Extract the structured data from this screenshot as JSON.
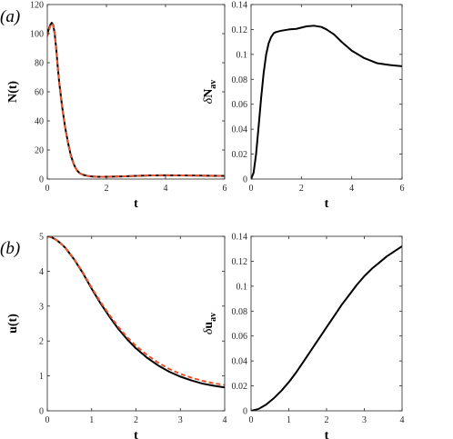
{
  "chart_data": [
    {
      "id": "a-left",
      "type": "line",
      "panel_label": "(a)",
      "xlabel": "t",
      "ylabel": "N(t)",
      "ylabel_parts": {
        "base": "N(t)",
        "delta": "",
        "sub": ""
      },
      "xlim": [
        0,
        6
      ],
      "ylim": [
        0,
        120
      ],
      "xticks": [
        0,
        2,
        4,
        6
      ],
      "yticks": [
        0,
        20,
        40,
        60,
        80,
        100,
        120
      ],
      "grid": false,
      "series": [
        {
          "color": "#000000",
          "dashed": false,
          "width": 2,
          "x": [
            0,
            0.05,
            0.1,
            0.15,
            0.2,
            0.25,
            0.3,
            0.35,
            0.4,
            0.5,
            0.6,
            0.7,
            0.8,
            0.9,
            1.0,
            1.1,
            1.2,
            1.3,
            1.4,
            1.5,
            1.7,
            2.0,
            2.5,
            3.0,
            3.5,
            4.0,
            4.5,
            5.0,
            5.5,
            6.0
          ],
          "values": [
            100,
            103,
            106,
            107.5,
            106,
            100,
            90,
            78,
            67,
            50,
            36,
            25,
            16,
            10,
            6,
            4,
            3,
            2.5,
            2,
            1.8,
            1.6,
            1.6,
            1.8,
            2.2,
            2.5,
            2.6,
            2.5,
            2.4,
            2.3,
            2.2
          ]
        },
        {
          "color": "#e8532b",
          "dashed": true,
          "width": 2,
          "x": [
            0,
            0.05,
            0.1,
            0.15,
            0.2,
            0.25,
            0.3,
            0.35,
            0.4,
            0.5,
            0.6,
            0.7,
            0.8,
            0.9,
            1.0,
            1.1,
            1.2,
            1.3,
            1.4,
            1.5,
            1.7,
            2.0,
            2.5,
            3.0,
            3.5,
            4.0,
            4.5,
            5.0,
            5.5,
            6.0
          ],
          "values": [
            98,
            102,
            105,
            107,
            105.5,
            99.5,
            89.5,
            77.5,
            66.5,
            49.5,
            35.5,
            24.5,
            15.5,
            9.8,
            5.8,
            3.9,
            2.9,
            2.4,
            2,
            1.8,
            1.6,
            1.6,
            1.8,
            2.2,
            2.5,
            2.6,
            2.5,
            2.4,
            2.3,
            2.2
          ]
        }
      ]
    },
    {
      "id": "a-right",
      "type": "line",
      "xlabel": "t",
      "ylabel": "δNav",
      "ylabel_parts": {
        "base": "N",
        "delta": "δ",
        "sub": "av"
      },
      "xlim": [
        0,
        6
      ],
      "ylim": [
        0,
        0.14
      ],
      "xticks": [
        0,
        2,
        4,
        6
      ],
      "yticks": [
        0,
        0.02,
        0.04,
        0.06,
        0.08,
        0.1,
        0.12,
        0.14
      ],
      "grid": false,
      "series": [
        {
          "color": "#000000",
          "dashed": false,
          "width": 2,
          "x": [
            0,
            0.1,
            0.2,
            0.3,
            0.4,
            0.5,
            0.6,
            0.7,
            0.8,
            0.9,
            1.0,
            1.2,
            1.5,
            1.8,
            2.0,
            2.2,
            2.5,
            2.8,
            3.0,
            3.3,
            3.6,
            4.0,
            4.5,
            5.0,
            5.5,
            6.0
          ],
          "values": [
            0,
            0.005,
            0.02,
            0.042,
            0.065,
            0.085,
            0.1,
            0.109,
            0.114,
            0.117,
            0.118,
            0.119,
            0.12,
            0.1205,
            0.1215,
            0.1225,
            0.123,
            0.122,
            0.12,
            0.116,
            0.11,
            0.103,
            0.097,
            0.093,
            0.0915,
            0.0905
          ]
        }
      ]
    },
    {
      "id": "b-left",
      "type": "line",
      "panel_label": "(b)",
      "xlabel": "t",
      "ylabel": "u(t)",
      "ylabel_parts": {
        "base": "u(t)",
        "delta": "",
        "sub": ""
      },
      "xlim": [
        0,
        4
      ],
      "ylim": [
        0,
        5
      ],
      "xticks": [
        0,
        1,
        2,
        3,
        4
      ],
      "yticks": [
        0,
        1,
        2,
        3,
        4,
        5
      ],
      "grid": false,
      "series": [
        {
          "color": "#000000",
          "dashed": false,
          "width": 2,
          "x": [
            0,
            0.1,
            0.2,
            0.3,
            0.4,
            0.6,
            0.8,
            1.0,
            1.2,
            1.4,
            1.6,
            1.8,
            2.0,
            2.25,
            2.5,
            2.75,
            3.0,
            3.25,
            3.5,
            3.75,
            4.0
          ],
          "values": [
            5.0,
            4.97,
            4.9,
            4.8,
            4.68,
            4.35,
            3.95,
            3.5,
            3.08,
            2.7,
            2.35,
            2.05,
            1.79,
            1.52,
            1.3,
            1.12,
            0.98,
            0.87,
            0.78,
            0.72,
            0.67
          ]
        },
        {
          "color": "#e8532b",
          "dashed": true,
          "width": 2,
          "x": [
            0,
            0.1,
            0.2,
            0.3,
            0.4,
            0.6,
            0.8,
            1.0,
            1.2,
            1.4,
            1.6,
            1.8,
            2.0,
            2.25,
            2.5,
            2.75,
            3.0,
            3.25,
            3.5,
            3.75,
            4.0
          ],
          "values": [
            5.0,
            4.97,
            4.9,
            4.8,
            4.68,
            4.36,
            3.97,
            3.53,
            3.12,
            2.75,
            2.41,
            2.11,
            1.86,
            1.6,
            1.38,
            1.2,
            1.06,
            0.95,
            0.86,
            0.79,
            0.74
          ]
        }
      ]
    },
    {
      "id": "b-right",
      "type": "line",
      "xlabel": "t",
      "ylabel": "δuav",
      "ylabel_parts": {
        "base": "u",
        "delta": "δ",
        "sub": "av"
      },
      "xlim": [
        0,
        4
      ],
      "ylim": [
        0,
        0.14
      ],
      "xticks": [
        0,
        1,
        2,
        3,
        4
      ],
      "yticks": [
        0,
        0.02,
        0.04,
        0.06,
        0.08,
        0.1,
        0.12,
        0.14
      ],
      "grid": false,
      "series": [
        {
          "color": "#000000",
          "dashed": false,
          "width": 2,
          "x": [
            0,
            0.2,
            0.4,
            0.6,
            0.8,
            1.0,
            1.2,
            1.4,
            1.6,
            1.8,
            2.0,
            2.2,
            2.4,
            2.6,
            2.8,
            3.0,
            3.2,
            3.4,
            3.6,
            3.8,
            4.0
          ],
          "values": [
            0,
            0.0015,
            0.005,
            0.01,
            0.016,
            0.023,
            0.031,
            0.04,
            0.049,
            0.058,
            0.067,
            0.076,
            0.085,
            0.093,
            0.101,
            0.108,
            0.114,
            0.119,
            0.124,
            0.128,
            0.132
          ]
        }
      ]
    }
  ]
}
